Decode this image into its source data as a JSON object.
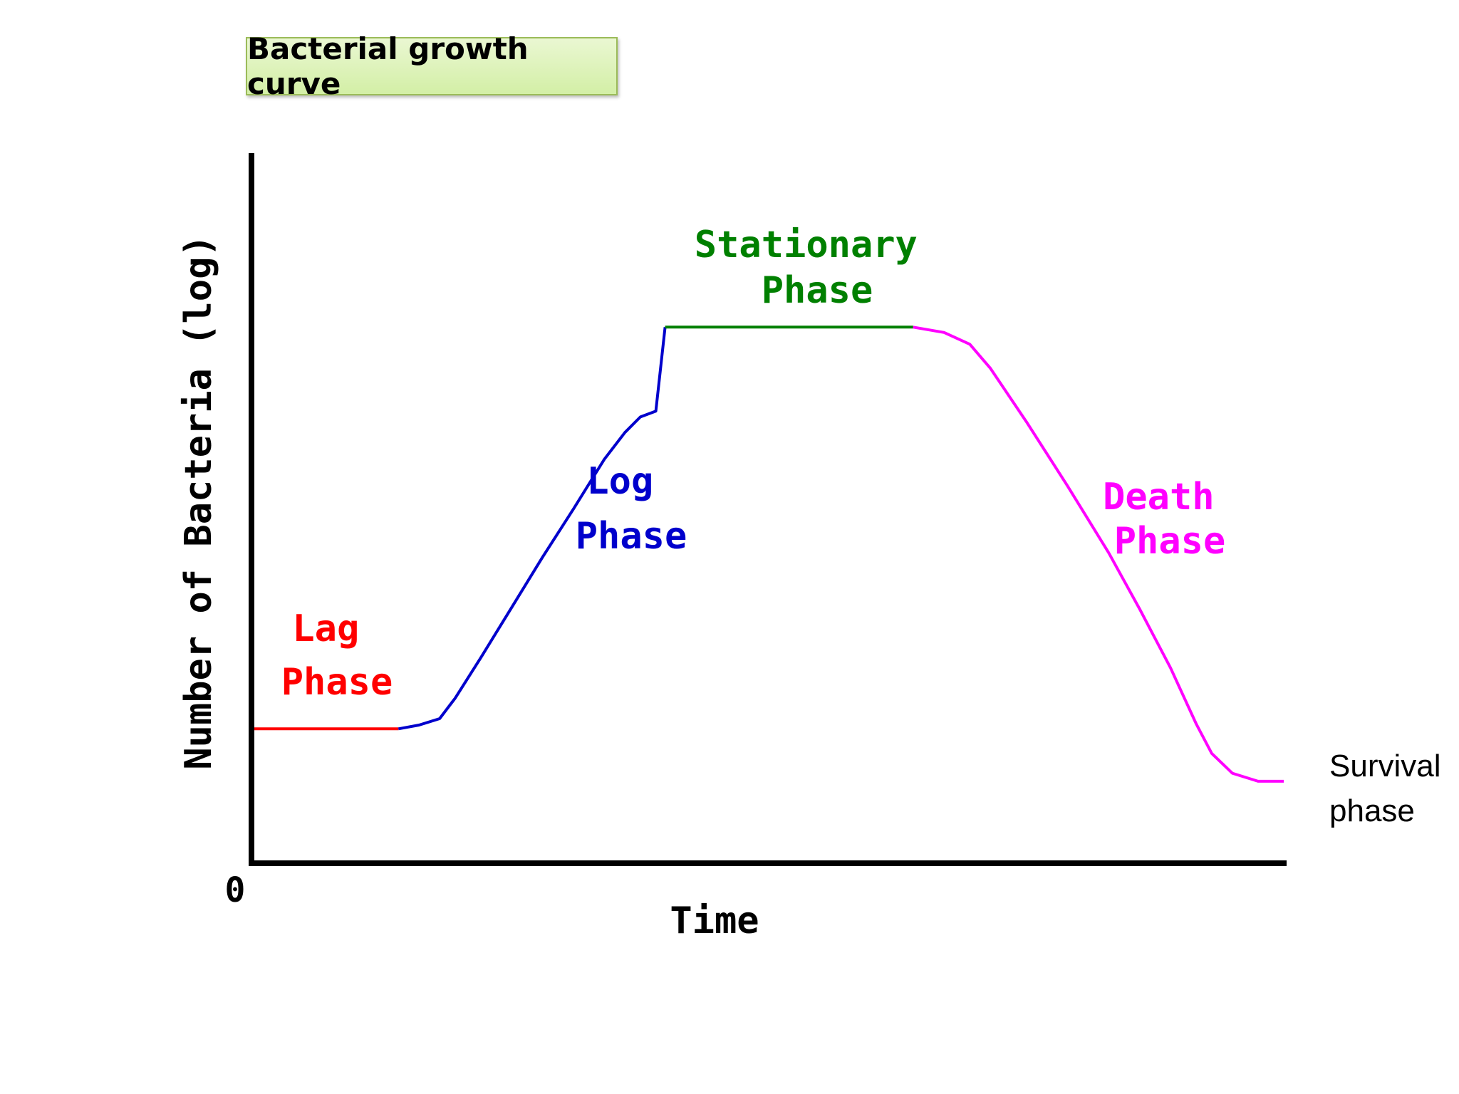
{
  "chart_data": {
    "type": "line",
    "title": "Bacterial growth curve",
    "xlabel": "Time",
    "ylabel": "Number of Bacteria (log)",
    "origin_label": "0",
    "grid": false,
    "legend": "none",
    "series": [
      {
        "name": "Lag Phase",
        "label_lines": [
          "Lag",
          "Phase"
        ],
        "color": "#ff0000",
        "points": [
          [
            0.0,
            0.246
          ],
          [
            0.14,
            0.246
          ]
        ]
      },
      {
        "name": "Log Phase",
        "label_lines": [
          "Log",
          "Phase"
        ],
        "color": "#0000cc",
        "points": [
          [
            0.14,
            0.246
          ],
          [
            0.16,
            0.253
          ],
          [
            0.18,
            0.265
          ],
          [
            0.195,
            0.303
          ],
          [
            0.22,
            0.379
          ],
          [
            0.25,
            0.473
          ],
          [
            0.28,
            0.567
          ],
          [
            0.31,
            0.657
          ],
          [
            0.34,
            0.75
          ],
          [
            0.36,
            0.8
          ],
          [
            0.375,
            0.829
          ],
          [
            0.39,
            0.84
          ],
          [
            0.399,
            0.997
          ]
        ]
      },
      {
        "name": "Stationary Phase",
        "label_lines": [
          "Stationary",
          "Phase"
        ],
        "color": "#008000",
        "points": [
          [
            0.399,
            0.997
          ],
          [
            0.64,
            0.997
          ]
        ]
      },
      {
        "name": "Death Phase",
        "label_lines": [
          "Death",
          "Phase"
        ],
        "color": "#ff00ff",
        "points": [
          [
            0.64,
            0.997
          ],
          [
            0.67,
            0.987
          ],
          [
            0.695,
            0.965
          ],
          [
            0.715,
            0.92
          ],
          [
            0.75,
            0.82
          ],
          [
            0.79,
            0.7
          ],
          [
            0.83,
            0.575
          ],
          [
            0.86,
            0.47
          ],
          [
            0.89,
            0.36
          ],
          [
            0.915,
            0.255
          ],
          [
            0.93,
            0.2
          ],
          [
            0.95,
            0.163
          ],
          [
            0.975,
            0.148
          ],
          [
            0.99,
            0.148
          ],
          [
            1.0,
            0.148
          ]
        ]
      }
    ],
    "annotations": [
      {
        "lines": [
          "Survival",
          "phase"
        ]
      }
    ]
  }
}
